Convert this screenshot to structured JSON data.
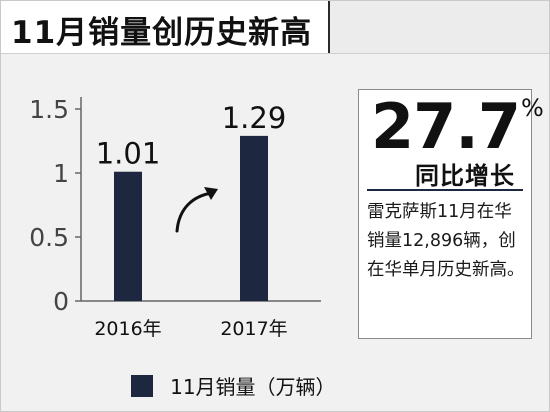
{
  "header": {
    "title": "11月销量创历史新高"
  },
  "chart_data": {
    "type": "bar",
    "categories": [
      "2016年",
      "2017年"
    ],
    "series": [
      {
        "name": "11月销量（万辆）",
        "values": [
          1.01,
          1.29
        ]
      }
    ],
    "data_labels": [
      "1.01",
      "1.29"
    ],
    "ylim": [
      0,
      1.5
    ],
    "yticks": [
      0,
      0.5,
      1,
      1.5
    ],
    "ytick_labels": [
      "0",
      "0.5",
      "1",
      "1.5"
    ],
    "grid": false,
    "legend_position": "bottom",
    "bar_color": "#1e2740"
  },
  "highlight": {
    "value": "27.7",
    "unit": "%",
    "label": "同比增长",
    "description": "雷克萨斯11月在华销量12,896辆，创在华单月历史新高。"
  },
  "legend": {
    "label": "11月销量（万辆）",
    "color": "#1e2740"
  },
  "icons": {
    "growth_arrow": "curved-arrow-up-right-icon"
  }
}
